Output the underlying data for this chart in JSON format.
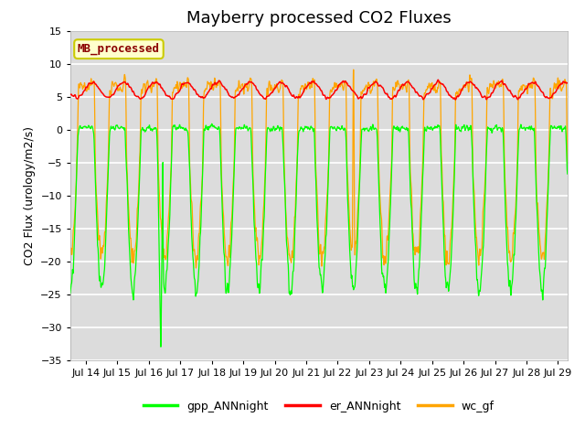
{
  "title": "Mayberry processed CO2 Fluxes",
  "ylabel": "CO2 Flux (urology/m2/s)",
  "ylim": [
    -35,
    15
  ],
  "yticks": [
    -35,
    -30,
    -25,
    -20,
    -15,
    -10,
    -5,
    0,
    5,
    10,
    15
  ],
  "xlim_days": [
    13.5,
    29.3
  ],
  "xtick_days": [
    14,
    15,
    16,
    17,
    18,
    19,
    20,
    21,
    22,
    23,
    24,
    25,
    26,
    27,
    28,
    29
  ],
  "xtick_labels": [
    "Jul 14",
    "Jul 15",
    "Jul 16",
    "Jul 17",
    "Jul 18",
    "Jul 19",
    "Jul 20",
    "Jul 21",
    "Jul 22",
    "Jul 23",
    "Jul 24",
    "Jul 25",
    "Jul 26",
    "Jul 27",
    "Jul 28",
    "Jul 29"
  ],
  "color_gpp": "#00FF00",
  "color_er": "#FF0000",
  "color_wc": "#FFA500",
  "legend_labels": [
    "gpp_ANNnight",
    "er_ANNnight",
    "wc_gf"
  ],
  "annotation_text": "MB_processed",
  "annotation_color": "#8B0000",
  "annotation_bg": "#FFFFCC",
  "annotation_edge": "#CCCC00",
  "bg_color": "#DCDCDC",
  "grid_color": "#FFFFFF",
  "title_fontsize": 13,
  "label_fontsize": 9,
  "tick_fontsize": 8,
  "legend_fontsize": 9
}
